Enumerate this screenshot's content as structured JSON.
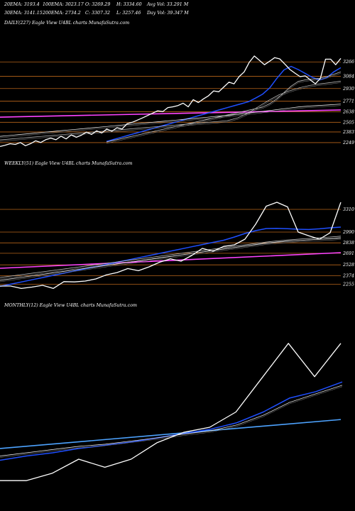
{
  "header": {
    "lines": [
      [
        "20EMA: 3193.4",
        "100EMA: 3023.17",
        "O: 3269.29",
        "H: 3334.60",
        "Avg Vol: 33.291 M"
      ],
      [
        "30EMA: 3141.15",
        "200EMA: 2734.2",
        "C: 3307.32",
        "L: 3257.46",
        "Day Vol: 39.347 M"
      ]
    ]
  },
  "colors": {
    "background": "#000000",
    "price": "#ffffff",
    "ema_short": "#1f4fff",
    "ema_mid": "#c8c8c8",
    "ema_long": "#ffffff",
    "level_line": "#b8651a",
    "trend_line_daily": "#ff44ff",
    "trend_line_monthly": "#4da3ff"
  },
  "chart_data": [
    {
      "type": "line",
      "title": "DAILY(227) Eagle  View  U4BL charts MunafaSutra.com",
      "ylim": [
        2150,
        3420
      ],
      "levels": [
        3266,
        3084,
        2930,
        2771,
        2638,
        2505,
        2383,
        2249
      ],
      "trend_line": [
        2570,
        2660
      ],
      "series": [
        {
          "role": "price",
          "values": [
            2200,
            2216,
            2235,
            2226,
            2250,
            2210,
            2236,
            2272,
            2250,
            2286,
            2306,
            2285,
            2330,
            2296,
            2346,
            2316,
            2342,
            2381,
            2352,
            2398,
            2370,
            2420,
            2392,
            2436,
            2420,
            2488,
            2505,
            2532,
            2560,
            2590,
            2620,
            2650,
            2640,
            2690,
            2700,
            2716,
            2746,
            2700,
            2790,
            2754,
            2800,
            2840,
            2900,
            2890,
            2950,
            3010,
            2990,
            3080,
            3140,
            3260,
            3340,
            3286,
            3230,
            3274,
            3320,
            3304,
            3238,
            3170,
            3124,
            3080,
            3090,
            3040,
            2990,
            3060,
            3300,
            3300,
            3230,
            3310
          ]
        },
        {
          "role": "ema20",
          "values": [
            2264,
            2289,
            2314,
            2339,
            2364,
            2389,
            2414,
            2439,
            2464,
            2489,
            2514,
            2539,
            2564,
            2589,
            2614,
            2639,
            2664,
            2689,
            2714,
            2739,
            2764,
            2810,
            2860,
            2940,
            3060,
            3165,
            3210,
            3170,
            3120,
            3070,
            3038,
            3065,
            3140,
            3193
          ]
        },
        {
          "role": "ema30",
          "values": [
            2257,
            2277,
            2297,
            2317,
            2337,
            2357,
            2377,
            2397,
            2417,
            2437,
            2457,
            2477,
            2497,
            2517,
            2537,
            2557,
            2577,
            2597,
            2617,
            2637,
            2657,
            2677,
            2697,
            2740,
            2800,
            2880,
            2960,
            3020,
            3040,
            3050,
            3060,
            3080,
            3110,
            3141
          ]
        },
        {
          "role": "ema100",
          "values": [
            2283,
            2294,
            2305,
            2316,
            2327,
            2338,
            2349,
            2360,
            2371,
            2382,
            2393,
            2404,
            2415,
            2426,
            2437,
            2448,
            2459,
            2470,
            2481,
            2492,
            2503,
            2514,
            2525,
            2560,
            2620,
            2700,
            2780,
            2850,
            2900,
            2940,
            2970,
            2990,
            3005,
            3023
          ]
        },
        {
          "role": "ema200",
          "values": [
            2328,
            2340,
            2352,
            2364,
            2376,
            2388,
            2400,
            2412,
            2424,
            2436,
            2448,
            2460,
            2472,
            2484,
            2496,
            2508,
            2520,
            2532,
            2544,
            2556,
            2568,
            2580,
            2592,
            2606,
            2620,
            2636,
            2652,
            2668,
            2684,
            2700,
            2710,
            2718,
            2726,
            2734
          ]
        }
      ]
    },
    {
      "type": "line",
      "title": "WEEKLY(51) Eagle  View  U4BL charts MunafaSutra.com",
      "ylim": [
        2180,
        3560
      ],
      "levels": [
        3310,
        2990,
        2838,
        2691,
        2528,
        2374,
        2255
      ],
      "trend_line": [
        2480,
        2700
      ],
      "series": [
        {
          "role": "price",
          "values": [
            2230,
            2230,
            2196,
            2215,
            2240,
            2196,
            2292,
            2288,
            2300,
            2330,
            2388,
            2420,
            2476,
            2446,
            2500,
            2566,
            2612,
            2580,
            2660,
            2760,
            2720,
            2788,
            2810,
            2890,
            3100,
            3355,
            3410,
            3345,
            2990,
            2938,
            2890,
            2981,
            3410
          ]
        },
        {
          "role": "ema_short",
          "values": [
            2225,
            2256,
            2287,
            2318,
            2349,
            2380,
            2411,
            2442,
            2473,
            2504,
            2535,
            2566,
            2597,
            2628,
            2659,
            2690,
            2721,
            2752,
            2783,
            2814,
            2845,
            2875,
            2920,
            2970,
            3010,
            3040,
            3043,
            3038,
            3030,
            3026,
            3036,
            3050,
            3060
          ]
        },
        {
          "role": "ema_mid",
          "values": [
            2350,
            2370,
            2390,
            2410,
            2430,
            2450,
            2470,
            2490,
            2510,
            2530,
            2550,
            2570,
            2590,
            2610,
            2630,
            2650,
            2670,
            2690,
            2710,
            2730,
            2750,
            2770,
            2790,
            2810,
            2830,
            2850,
            2865,
            2878,
            2890,
            2900,
            2910,
            2920,
            2932
          ]
        },
        {
          "role": "ema_long",
          "values": [
            2310,
            2331,
            2352,
            2373,
            2394,
            2415,
            2436,
            2457,
            2478,
            2499,
            2520,
            2541,
            2562,
            2583,
            2604,
            2625,
            2646,
            2667,
            2688,
            2709,
            2730,
            2751,
            2772,
            2793,
            2814,
            2835,
            2850,
            2862,
            2872,
            2880,
            2888,
            2896,
            2905
          ]
        }
      ]
    },
    {
      "type": "line",
      "title": "MONTHLY(12) Eagle  View  U4BL charts MunafaSutra.com",
      "ylim": [
        1900,
        3700
      ],
      "trend_line": [
        2430,
        2700
      ],
      "series": [
        {
          "role": "price",
          "values": [
            2130,
            2130,
            2200,
            2330,
            2255,
            2330,
            2485,
            2580,
            2628,
            2770,
            3090,
            3410,
            3100,
            3410
          ]
        },
        {
          "role": "ema_short",
          "values": [
            2320,
            2360,
            2390,
            2430,
            2460,
            2490,
            2530,
            2570,
            2610,
            2670,
            2770,
            2900,
            2960,
            3050
          ]
        },
        {
          "role": "ema_long",
          "values": [
            2360,
            2390,
            2420,
            2450,
            2470,
            2500,
            2530,
            2565,
            2595,
            2650,
            2740,
            2860,
            2940,
            3020
          ]
        }
      ]
    }
  ]
}
